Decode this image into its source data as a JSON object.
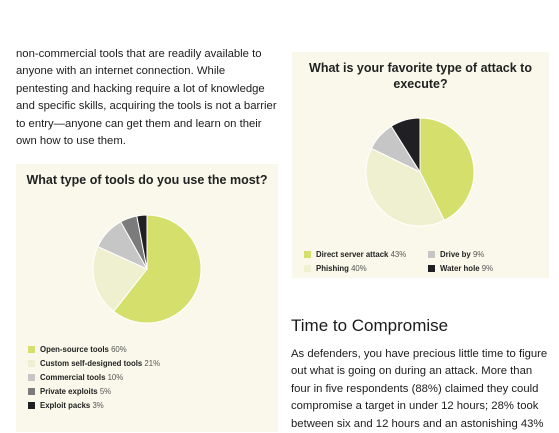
{
  "intro_text": "non-commercial tools that are readily available to anyone with an internet connection. While pentesting and hacking require a lot of knowledge and specific skills, acquiring the tools is not a barrier to entry—anyone can get them and learn on their own how to use them.",
  "section_heading": "Time to Compromise",
  "section_body": "As defenders, you have precious little time to figure out what is going on during an attack. More than four in five respondents (88%) claimed they could compromise a target in under 12 hours; 28% took between six and 12 hours and an astonishing 43%",
  "chart_data": [
    {
      "type": "pie",
      "title": "What type of tools do you use the most?",
      "categories": [
        "Open-source tools",
        "Custom self-designed tools",
        "Commercial tools",
        "Private exploits",
        "Exploit packs"
      ],
      "values": [
        60,
        21,
        10,
        5,
        3
      ],
      "value_labels": [
        "60%",
        "21%",
        "10%",
        "5%",
        "3%"
      ],
      "colors": [
        "#d4e06b",
        "#eff0d0",
        "#c6c6c6",
        "#7b7b7b",
        "#1f1f24"
      ],
      "legend_position": "bottom-left"
    },
    {
      "type": "pie",
      "title": "What is your favorite type of attack to execute?",
      "categories": [
        "Direct server attack",
        "Phishing",
        "Drive by",
        "Water hole"
      ],
      "values": [
        43,
        40,
        9,
        9
      ],
      "value_labels": [
        "43%",
        "40%",
        "9%",
        "9%"
      ],
      "colors": [
        "#d4e06b",
        "#eff0d0",
        "#c6c6c6",
        "#1f1f24"
      ],
      "legend_position": "bottom"
    }
  ]
}
